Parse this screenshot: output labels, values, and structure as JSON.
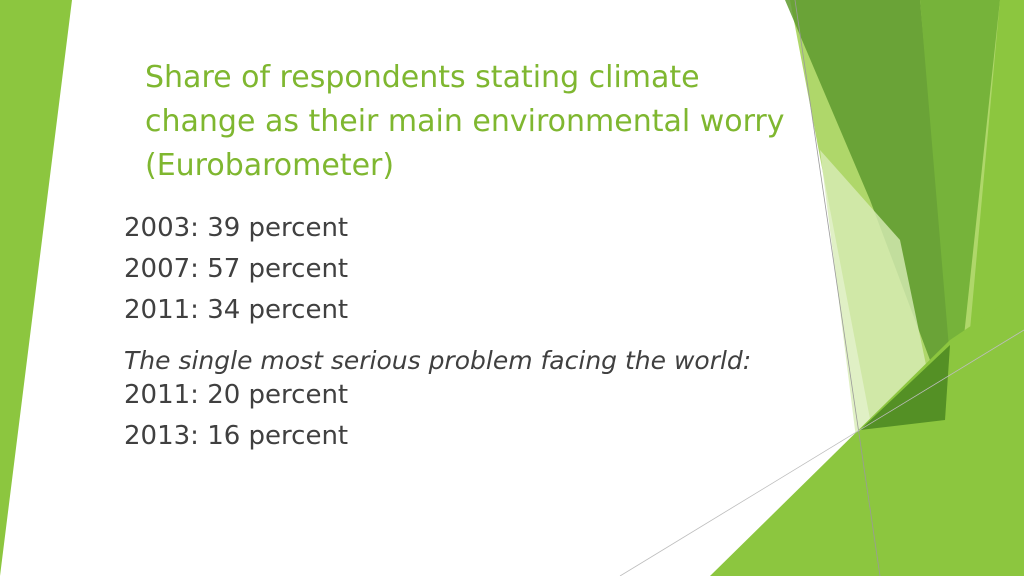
{
  "slide": {
    "title": "Share of respondents stating climate change as their main environmental worry (Eurobarometer)",
    "stats": [
      {
        "text": "2003: 39 percent"
      },
      {
        "text": "2007: 57 percent"
      },
      {
        "text": "2011: 34 percent"
      }
    ],
    "note": "The single most serious problem facing the world:",
    "note_stats": [
      {
        "text": "2011: 20 percent"
      },
      {
        "text": "2013: 16 percent"
      }
    ]
  },
  "colors": {
    "title": "#7fb730",
    "body_text": "#404040",
    "accent_light": "#c9e39a",
    "accent_mid": "#8cc63f",
    "accent_dark": "#5e9a2e"
  }
}
